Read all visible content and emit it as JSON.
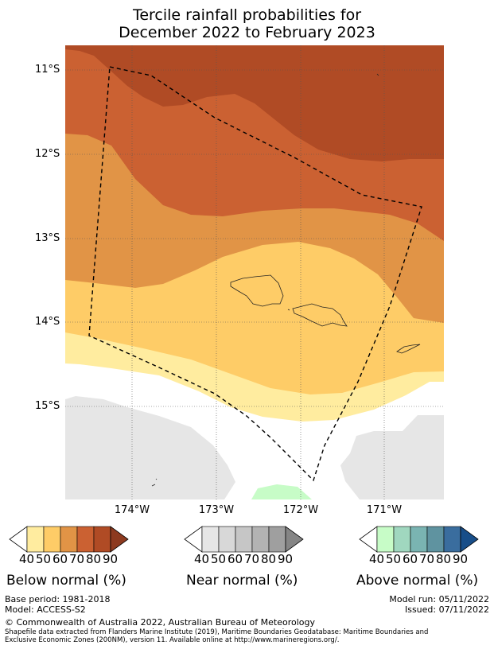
{
  "title_line1": "Tercile rainfall probabilities for",
  "title_line2": "December 2022 to February 2023",
  "lat_labels": [
    "11°S",
    "12°S",
    "13°S",
    "14°S",
    "15°S"
  ],
  "lon_labels": [
    "174°W",
    "173°W",
    "172°W",
    "171°W"
  ],
  "colorbars": [
    {
      "label": "Below normal (%)",
      "ticks": [
        "40",
        "50",
        "60",
        "70",
        "80",
        "90"
      ],
      "colors": [
        "#ffffff",
        "#ffec9f",
        "#fecc67",
        "#e19446",
        "#cb6132",
        "#b04b25",
        "#8d3a1f"
      ]
    },
    {
      "label": "Near normal (%)",
      "ticks": [
        "40",
        "50",
        "60",
        "70",
        "80",
        "90"
      ],
      "colors": [
        "#ffffff",
        "#e6e6e6",
        "#d8d8d8",
        "#c6c6c6",
        "#b3b3b3",
        "#9f9f9f",
        "#858585"
      ]
    },
    {
      "label": "Above normal (%)",
      "ticks": [
        "40",
        "50",
        "60",
        "70",
        "80",
        "90"
      ],
      "colors": [
        "#ffffff",
        "#c7fcc7",
        "#a0d7bf",
        "#7ab4b2",
        "#5f93a0",
        "#3a6d9e",
        "#184e89"
      ]
    }
  ],
  "base_period": "Base period: 1981-2018",
  "model": "Model: ACCESS-S2",
  "model_run": "Model run: 05/11/2022",
  "issued": "Issued: 07/11/2022",
  "copyright": "© Commonwealth of Australia 2022, Australian Bureau of Meteorology",
  "shapefile_line1": "Shapefile data extracted from Flanders Marine Institute (2019), Maritime Boundaries Geodatabase: Maritime Boundaries and",
  "shapefile_line2": "Exclusive Economic Zones (200NM), version 11. Available online at http://www.marineregions.org/.",
  "map_colors": {
    "below_50": "#ffec9f",
    "below_60": "#fecc67",
    "below_70": "#e19446",
    "below_80": "#cb6132",
    "below_90": "#b04b25",
    "near_50": "#e6e6e6",
    "above_50": "#c7fcc7"
  }
}
